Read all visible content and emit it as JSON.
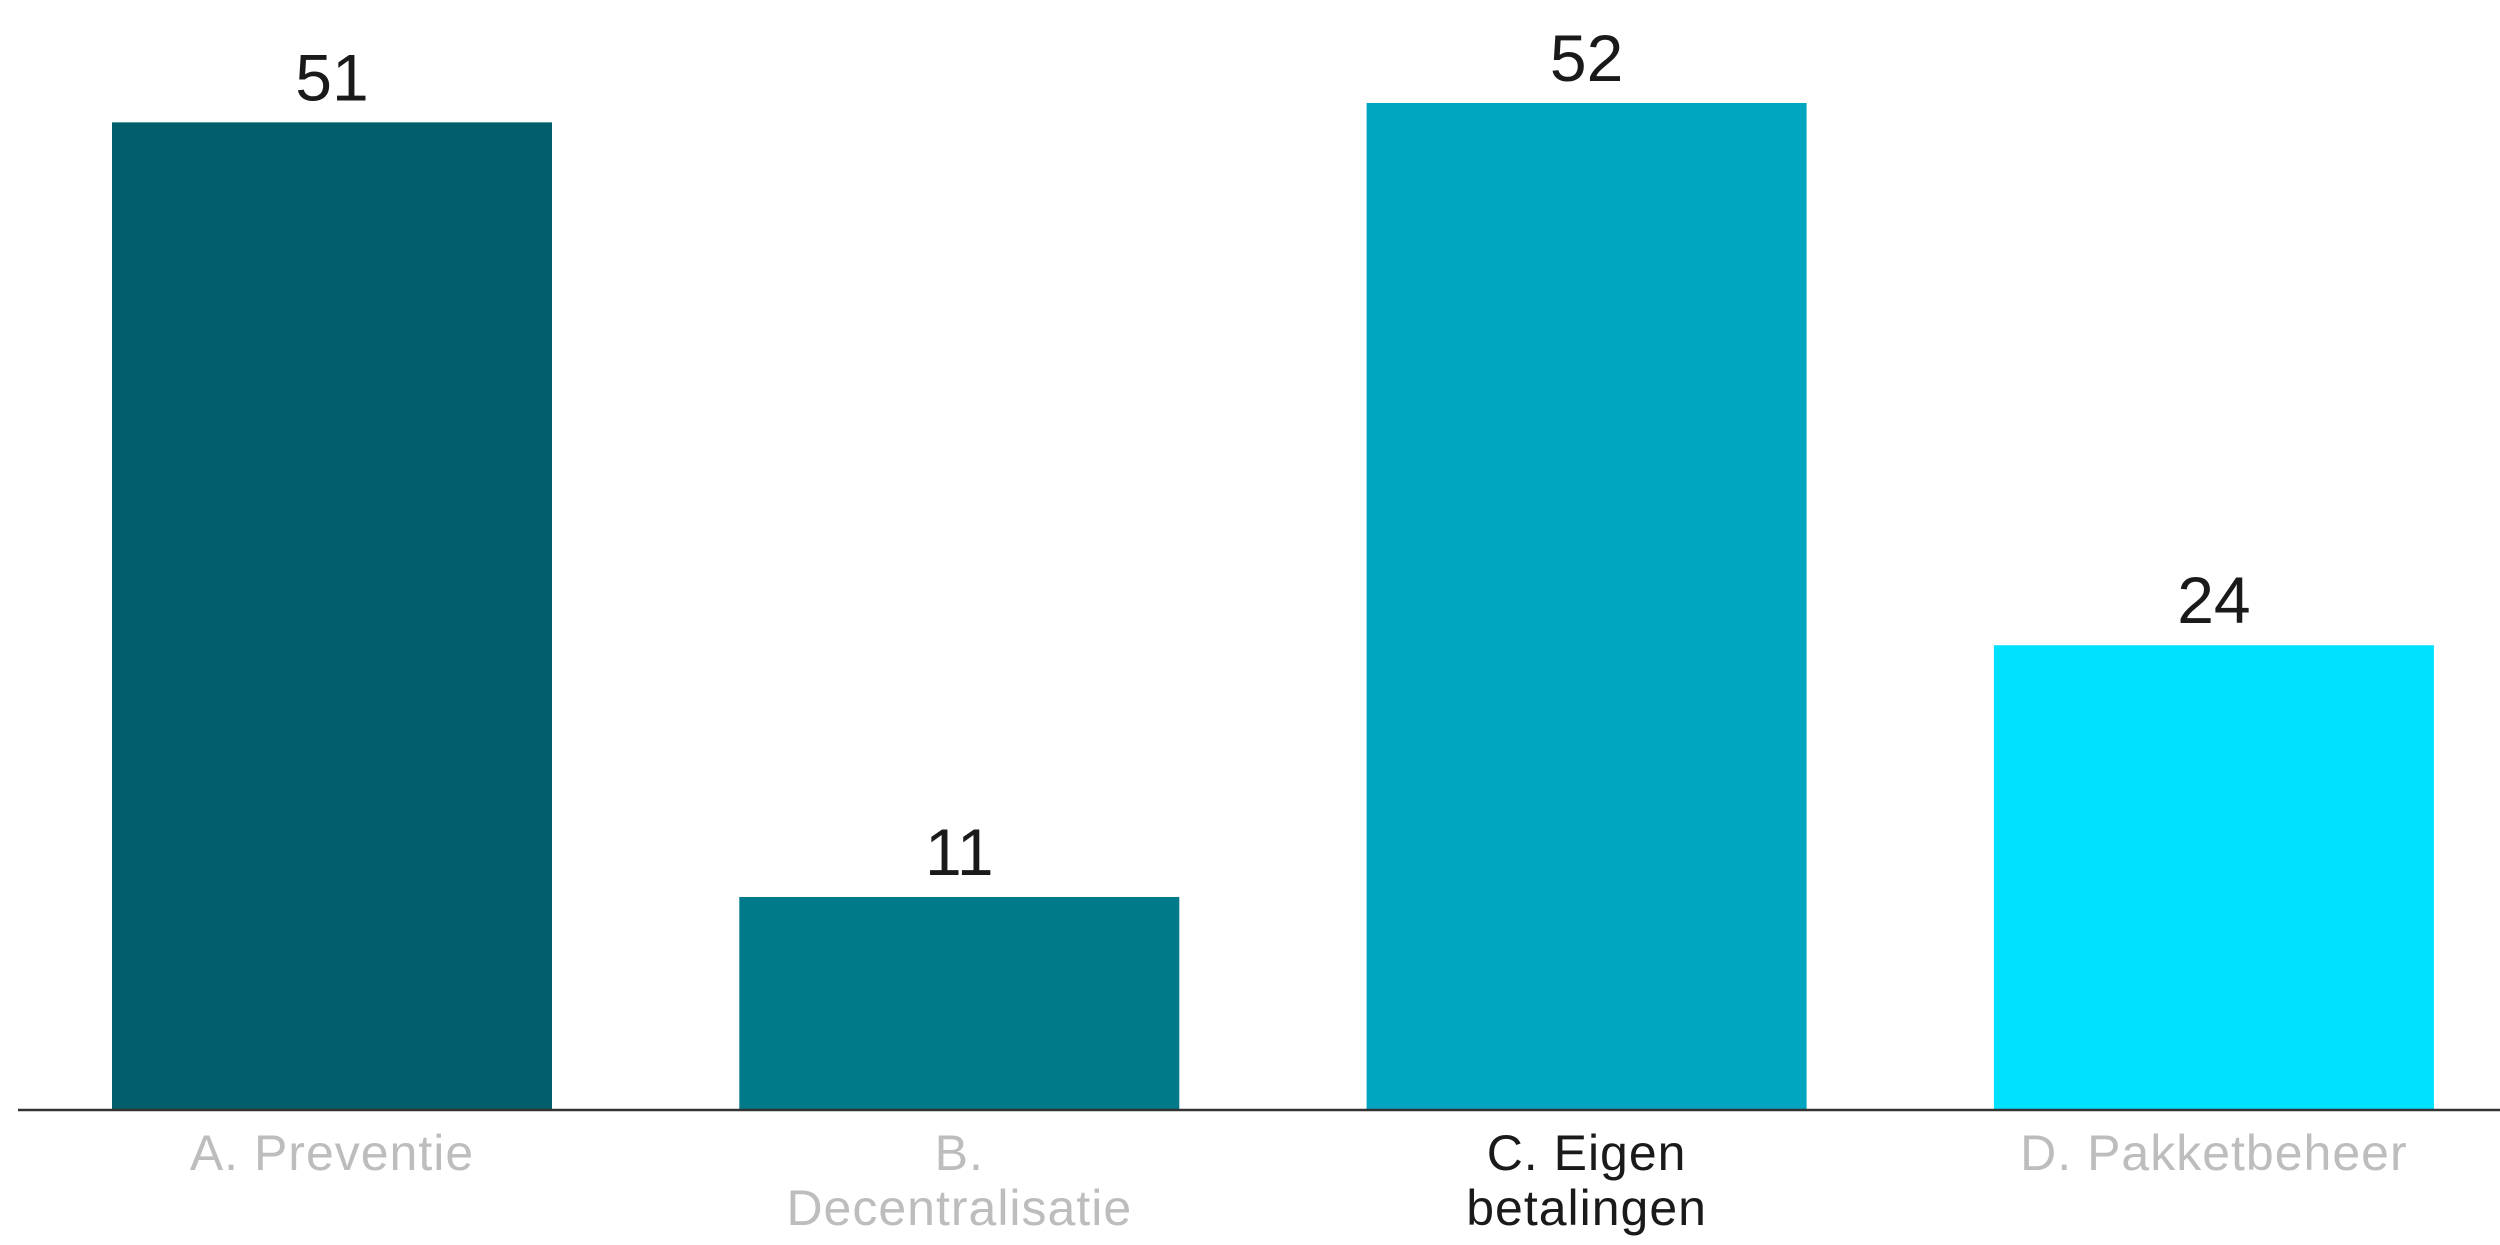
{
  "chart_data": {
    "type": "bar",
    "title": "",
    "xlabel": "",
    "ylabel": "",
    "ylim": [
      0,
      52
    ],
    "grid": false,
    "legend": "none",
    "categories": [
      [
        "A. Preventie"
      ],
      [
        "B.",
        "Decentralisatie"
      ],
      [
        "C. Eigen",
        "betalingen"
      ],
      [
        "D. Pakketbeheer"
      ]
    ],
    "values": [
      51,
      11,
      52,
      24
    ],
    "value_labels": [
      "51",
      "11",
      "52",
      "24"
    ],
    "bar_colors": [
      "#025e6b",
      "#007a89",
      "#00a6c0",
      "#00e0ff"
    ],
    "category_label_colors": [
      "#bdbdbd",
      "#bdbdbd",
      "#1a1a1a",
      "#bdbdbd"
    ],
    "highlighted_category": "C. Eigen betalingen",
    "axis_color": "#333333"
  }
}
